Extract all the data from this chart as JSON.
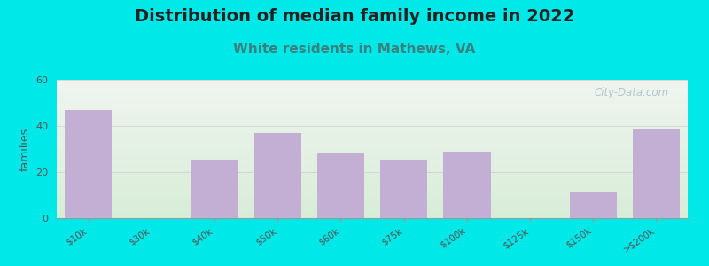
{
  "title": "Distribution of median family income in 2022",
  "subtitle": "White residents in Mathews, VA",
  "categories": [
    "$10k",
    "$30k",
    "$40k",
    "$50k",
    "$60k",
    "$75k",
    "$100k",
    "$125k",
    "$150k",
    ">$200k"
  ],
  "values": [
    47,
    0,
    25,
    37,
    28,
    25,
    29,
    0,
    11,
    39
  ],
  "bar_color": "#c4afd4",
  "background_color": "#00e8e8",
  "plot_bg_top": "#f0f5f0",
  "plot_bg_bottom": "#d8edd8",
  "ylabel": "families",
  "ylim": [
    0,
    60
  ],
  "yticks": [
    0,
    20,
    40,
    60
  ],
  "title_fontsize": 14,
  "subtitle_fontsize": 11,
  "title_color": "#222222",
  "subtitle_color": "#3a8080",
  "watermark": "City-Data.com",
  "watermark_color": "#aabbcc"
}
